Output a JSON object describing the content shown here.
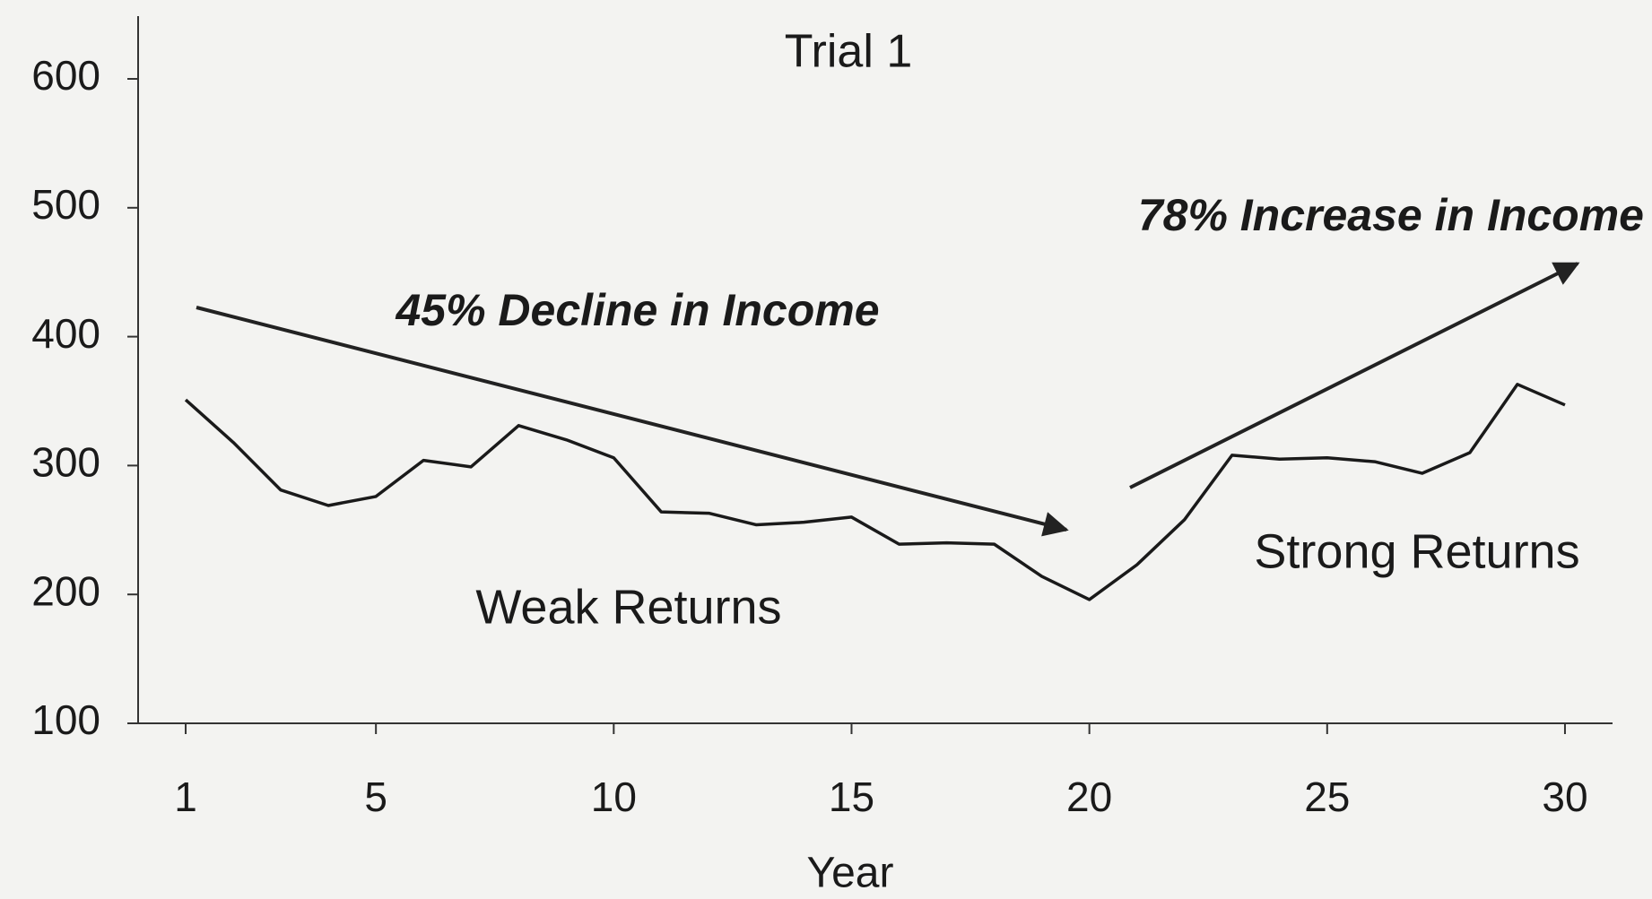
{
  "chart_data": {
    "type": "line",
    "title": "Trial 1",
    "xlabel": "Year",
    "x": [
      1,
      2,
      3,
      4,
      5,
      6,
      7,
      8,
      9,
      10,
      11,
      12,
      13,
      14,
      15,
      16,
      17,
      18,
      19,
      20,
      21,
      22,
      23,
      24,
      25,
      26,
      27,
      28,
      29,
      30
    ],
    "series": [
      {
        "name": "Income",
        "color": "#1a1a1a",
        "values": [
          351,
          318,
          281,
          269,
          276,
          304,
          299,
          331,
          320,
          306,
          264,
          263,
          254,
          256,
          260,
          239,
          240,
          239,
          214,
          196,
          223,
          258,
          308,
          305,
          306,
          303,
          294,
          310,
          363,
          347
        ]
      }
    ],
    "xlim": [
      0,
      31
    ],
    "xticks": [
      1,
      5,
      10,
      15,
      20,
      25,
      30
    ],
    "ylim": [
      100,
      600
    ],
    "yticks": [
      100,
      200,
      300,
      400,
      500,
      600
    ],
    "annotations": [
      "45% Decline in Income",
      "78% Increase in Income",
      "Weak Returns",
      "Strong Returns"
    ]
  }
}
